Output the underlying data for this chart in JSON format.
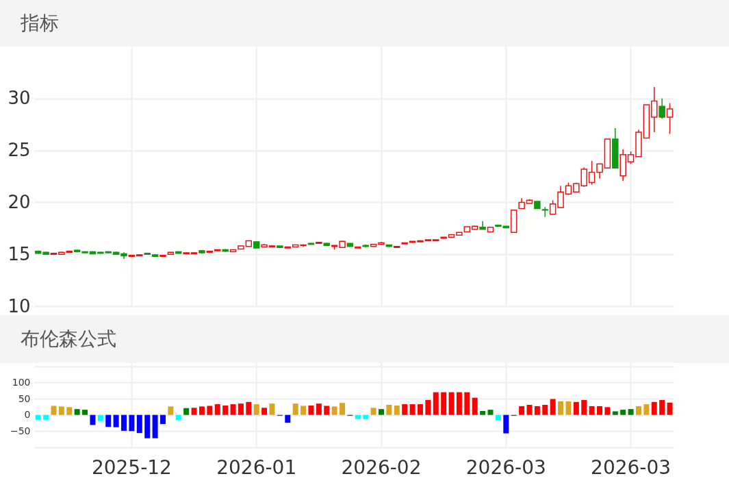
{
  "chart_data": [
    {
      "type": "candlestick",
      "title": "指标",
      "categories": [
        null,
        null,
        null,
        null,
        null,
        null,
        null,
        null,
        null,
        null,
        null,
        null,
        "2025-12",
        null,
        null,
        null,
        null,
        null,
        null,
        null,
        null,
        null,
        null,
        null,
        null,
        null,
        null,
        null,
        "2026-01",
        null,
        null,
        null,
        null,
        null,
        null,
        null,
        null,
        null,
        null,
        null,
        null,
        null,
        null,
        null,
        "2026-02",
        null,
        null,
        null,
        null,
        null,
        null,
        null,
        null,
        null,
        null,
        null,
        null,
        null,
        null,
        null,
        "2026-03",
        null,
        null,
        null,
        null,
        null,
        null,
        null,
        null,
        null,
        null,
        null,
        null,
        null,
        null,
        null,
        "2026-03",
        null,
        null,
        null,
        null,
        null
      ],
      "ohlc": [
        [
          15.3,
          15.35,
          15.05,
          15.1
        ],
        [
          15.2,
          15.25,
          14.95,
          15.0
        ],
        [
          15.0,
          15.15,
          14.95,
          15.1
        ],
        [
          15.0,
          15.25,
          14.95,
          15.2
        ],
        [
          15.2,
          15.35,
          15.15,
          15.3
        ],
        [
          15.4,
          15.45,
          15.2,
          15.25
        ],
        [
          15.25,
          15.3,
          15.1,
          15.15
        ],
        [
          15.25,
          15.3,
          15.0,
          15.05
        ],
        [
          15.2,
          15.25,
          15.05,
          15.1
        ],
        [
          15.25,
          15.3,
          15.1,
          15.15
        ],
        [
          15.2,
          15.25,
          14.95,
          15.0
        ],
        [
          15.05,
          15.2,
          14.55,
          14.85
        ],
        [
          14.8,
          14.95,
          14.75,
          14.9
        ],
        [
          14.85,
          15.0,
          14.85,
          14.95
        ],
        [
          15.1,
          15.15,
          14.95,
          15.0
        ],
        [
          14.95,
          15.0,
          14.75,
          14.8
        ],
        [
          14.8,
          14.9,
          14.75,
          14.9
        ],
        [
          15.0,
          15.2,
          14.95,
          15.2
        ],
        [
          15.25,
          15.3,
          15.05,
          15.1
        ],
        [
          15.05,
          15.15,
          15.0,
          15.15
        ],
        [
          15.05,
          15.2,
          15.0,
          15.15
        ],
        [
          15.35,
          15.4,
          15.1,
          15.15
        ],
        [
          15.2,
          15.35,
          15.15,
          15.3
        ],
        [
          15.35,
          15.45,
          15.3,
          15.45
        ],
        [
          15.45,
          15.5,
          15.25,
          15.3
        ],
        [
          15.25,
          15.45,
          15.25,
          15.45
        ],
        [
          15.5,
          15.8,
          15.5,
          15.8
        ],
        [
          15.75,
          16.35,
          15.75,
          16.3
        ],
        [
          16.2,
          16.25,
          15.6,
          15.6
        ],
        [
          15.7,
          16.0,
          15.7,
          15.9
        ],
        [
          15.7,
          15.85,
          15.7,
          15.8
        ],
        [
          15.8,
          15.8,
          15.6,
          15.65
        ],
        [
          15.6,
          15.75,
          15.6,
          15.7
        ],
        [
          15.7,
          15.9,
          15.7,
          15.9
        ],
        [
          15.85,
          15.95,
          15.7,
          15.9
        ],
        [
          16.05,
          16.1,
          15.95,
          15.95
        ],
        [
          16.05,
          16.15,
          16.0,
          16.15
        ],
        [
          16.05,
          16.1,
          15.8,
          15.85
        ],
        [
          15.75,
          15.85,
          15.45,
          15.85
        ],
        [
          15.65,
          16.3,
          15.6,
          16.25
        ],
        [
          16.05,
          16.05,
          15.75,
          15.75
        ],
        [
          15.6,
          15.7,
          15.6,
          15.7
        ],
        [
          15.85,
          15.95,
          15.65,
          15.75
        ],
        [
          15.75,
          15.95,
          15.75,
          15.95
        ],
        [
          15.95,
          16.2,
          15.95,
          16.1
        ],
        [
          15.9,
          15.9,
          15.7,
          15.75
        ],
        [
          15.65,
          15.75,
          15.6,
          15.75
        ],
        [
          16.0,
          16.1,
          16.0,
          16.1
        ],
        [
          16.15,
          16.25,
          16.1,
          16.25
        ],
        [
          16.2,
          16.35,
          16.2,
          16.3
        ],
        [
          16.3,
          16.4,
          16.3,
          16.4
        ],
        [
          16.3,
          16.4,
          16.3,
          16.4
        ],
        [
          16.55,
          16.65,
          16.5,
          16.65
        ],
        [
          16.65,
          16.9,
          16.65,
          16.9
        ],
        [
          16.85,
          17.1,
          16.85,
          17.1
        ],
        [
          17.15,
          17.65,
          17.15,
          17.65
        ],
        [
          17.4,
          17.75,
          17.4,
          17.7
        ],
        [
          17.6,
          18.2,
          17.4,
          17.4
        ],
        [
          17.15,
          17.65,
          17.15,
          17.6
        ],
        [
          17.8,
          17.8,
          17.7,
          17.7
        ],
        [
          17.7,
          17.75,
          17.5,
          17.55
        ],
        [
          17.1,
          19.25,
          17.1,
          19.25
        ],
        [
          19.4,
          20.4,
          19.4,
          20.0
        ],
        [
          19.9,
          20.3,
          19.9,
          20.2
        ],
        [
          20.1,
          20.1,
          19.4,
          19.4
        ],
        [
          19.3,
          19.55,
          18.6,
          19.25
        ],
        [
          18.85,
          20.2,
          18.85,
          19.85
        ],
        [
          19.5,
          21.6,
          19.5,
          21.0
        ],
        [
          20.8,
          21.9,
          20.7,
          21.6
        ],
        [
          21.0,
          21.9,
          21.0,
          21.8
        ],
        [
          21.6,
          23.35,
          21.5,
          23.2
        ],
        [
          21.9,
          24.0,
          21.7,
          22.9
        ],
        [
          22.9,
          23.7,
          22.3,
          23.7
        ],
        [
          23.3,
          26.1,
          23.3,
          26.1
        ],
        [
          26.1,
          27.15,
          23.3,
          23.3
        ],
        [
          22.55,
          25.1,
          22.05,
          24.6
        ],
        [
          23.9,
          24.9,
          23.7,
          24.6
        ],
        [
          24.4,
          27.0,
          24.4,
          26.75
        ],
        [
          26.2,
          29.4,
          26.2,
          29.4
        ],
        [
          28.2,
          31.1,
          26.75,
          29.75
        ],
        [
          29.25,
          30.0,
          28.05,
          28.2
        ],
        [
          28.2,
          29.55,
          26.6,
          29.0
        ]
      ],
      "colors": [
        "#119911",
        "#119911",
        "#ee1111",
        "#ee1111",
        "#ee1111",
        "#119911",
        "#119911",
        "#119911",
        "#119911",
        "#119911",
        "#119911",
        "#119911",
        "#ee1111",
        "#ee1111",
        "#119911",
        "#119911",
        "#ee1111",
        "#ee1111",
        "#119911",
        "#ee1111",
        "#ee1111",
        "#119911",
        "#ee1111",
        "#ee1111",
        "#119911",
        "#ee1111",
        "#ee1111",
        "#ee1111",
        "#119911",
        "#ee1111",
        "#ee1111",
        "#119911",
        "#ee1111",
        "#ee1111",
        "#ee1111",
        "#119911",
        "#ee1111",
        "#119911",
        "#ee1111",
        "#ee1111",
        "#119911",
        "#ee1111",
        "#119911",
        "#ee1111",
        "#ee1111",
        "#119911",
        "#ee1111",
        "#ee1111",
        "#ee1111",
        "#ee1111",
        "#ee1111",
        "#ee1111",
        "#ee1111",
        "#ee1111",
        "#ee1111",
        "#ee1111",
        "#ee1111",
        "#119911",
        "#ee1111",
        "#119911",
        "#119911",
        "#ee1111",
        "#ee1111",
        "#ee1111",
        "#119911",
        "#119911",
        "#ee1111",
        "#ee1111",
        "#ee1111",
        "#ee1111",
        "#ee1111",
        "#ee1111",
        "#ee1111",
        "#ee1111",
        "#119911",
        "#ee1111",
        "#ee1111",
        "#ee1111",
        "#ee1111",
        "#ee1111",
        "#119911",
        "#ee1111"
      ],
      "ylim": [
        10,
        35
      ],
      "yticks": [
        10,
        15,
        20,
        25,
        30
      ],
      "grid": true,
      "tick_labels": "y"
    },
    {
      "type": "bar",
      "title": "布伦森公式",
      "categories": [
        null,
        null,
        null,
        null,
        null,
        null,
        null,
        null,
        null,
        null,
        null,
        null,
        "2025-12",
        null,
        null,
        null,
        null,
        null,
        null,
        null,
        null,
        null,
        null,
        null,
        null,
        null,
        null,
        null,
        "2026-01",
        null,
        null,
        null,
        null,
        null,
        null,
        null,
        null,
        null,
        null,
        null,
        null,
        null,
        null,
        null,
        "2026-02",
        null,
        null,
        null,
        null,
        null,
        null,
        null,
        null,
        null,
        null,
        null,
        null,
        null,
        null,
        null,
        "2026-03",
        null,
        null,
        null,
        null,
        null,
        null,
        null,
        null,
        null,
        null,
        null,
        null,
        null,
        null,
        null,
        "2026-03",
        null,
        null,
        null,
        null,
        null
      ],
      "values": [
        -15,
        -15,
        28,
        26,
        24,
        18,
        16,
        -31,
        -19,
        -37,
        -38,
        -49,
        -50,
        -56,
        -72,
        -72,
        -28,
        26,
        -16,
        21,
        22,
        26,
        28,
        33,
        29,
        33,
        35,
        40,
        33,
        22,
        35,
        -3,
        -24,
        35,
        28,
        29,
        35,
        28,
        26,
        37,
        -3,
        -13,
        -13,
        22,
        18,
        31,
        29,
        33,
        33,
        33,
        46,
        70,
        70,
        70,
        70,
        70,
        53,
        12,
        16,
        -17,
        -57,
        -3,
        27,
        31,
        27,
        31,
        49,
        42,
        42,
        40,
        46,
        27,
        27,
        24,
        11,
        16,
        18,
        27,
        33,
        40,
        46,
        38
      ],
      "colors": [
        "#00ffff",
        "#00ffff",
        "#daa520",
        "#daa520",
        "#daa520",
        "#008000",
        "#008000",
        "#0000ff",
        "#00ffff",
        "#0000ff",
        "#0000ff",
        "#0000ff",
        "#0000ff",
        "#0000ff",
        "#0000ff",
        "#0000ff",
        "#0000ff",
        "#daa520",
        "#00ffff",
        "#008000",
        "#ff0000",
        "#ff0000",
        "#ff0000",
        "#ff0000",
        "#ff0000",
        "#ff0000",
        "#ff0000",
        "#ff0000",
        "#daa520",
        "#ff0000",
        "#daa520",
        "#555555",
        "#0000ff",
        "#daa520",
        "#daa520",
        "#ff0000",
        "#ff0000",
        "#ff0000",
        "#daa520",
        "#daa520",
        "#555555",
        "#00ffff",
        "#00ffff",
        "#daa520",
        "#008000",
        "#daa520",
        "#daa520",
        "#ff0000",
        "#ff0000",
        "#ff0000",
        "#ff0000",
        "#ff0000",
        "#ff0000",
        "#ff0000",
        "#ff0000",
        "#ff0000",
        "#ff0000",
        "#008000",
        "#008000",
        "#00ffff",
        "#0000ff",
        "#555555",
        "#ff0000",
        "#ff0000",
        "#ff0000",
        "#ff0000",
        "#ff0000",
        "#daa520",
        "#daa520",
        "#ff0000",
        "#ff0000",
        "#ff0000",
        "#ff0000",
        "#ff0000",
        "#008000",
        "#008000",
        "#008000",
        "#daa520",
        "#daa520",
        "#ff0000",
        "#ff0000",
        "#ff0000"
      ],
      "ylim": [
        -100,
        160
      ],
      "yticks": [
        {
          "value": -100,
          "label": null
        },
        -50,
        0,
        50,
        100,
        {
          "value": 150,
          "label": null
        }
      ],
      "grid": true
    }
  ]
}
